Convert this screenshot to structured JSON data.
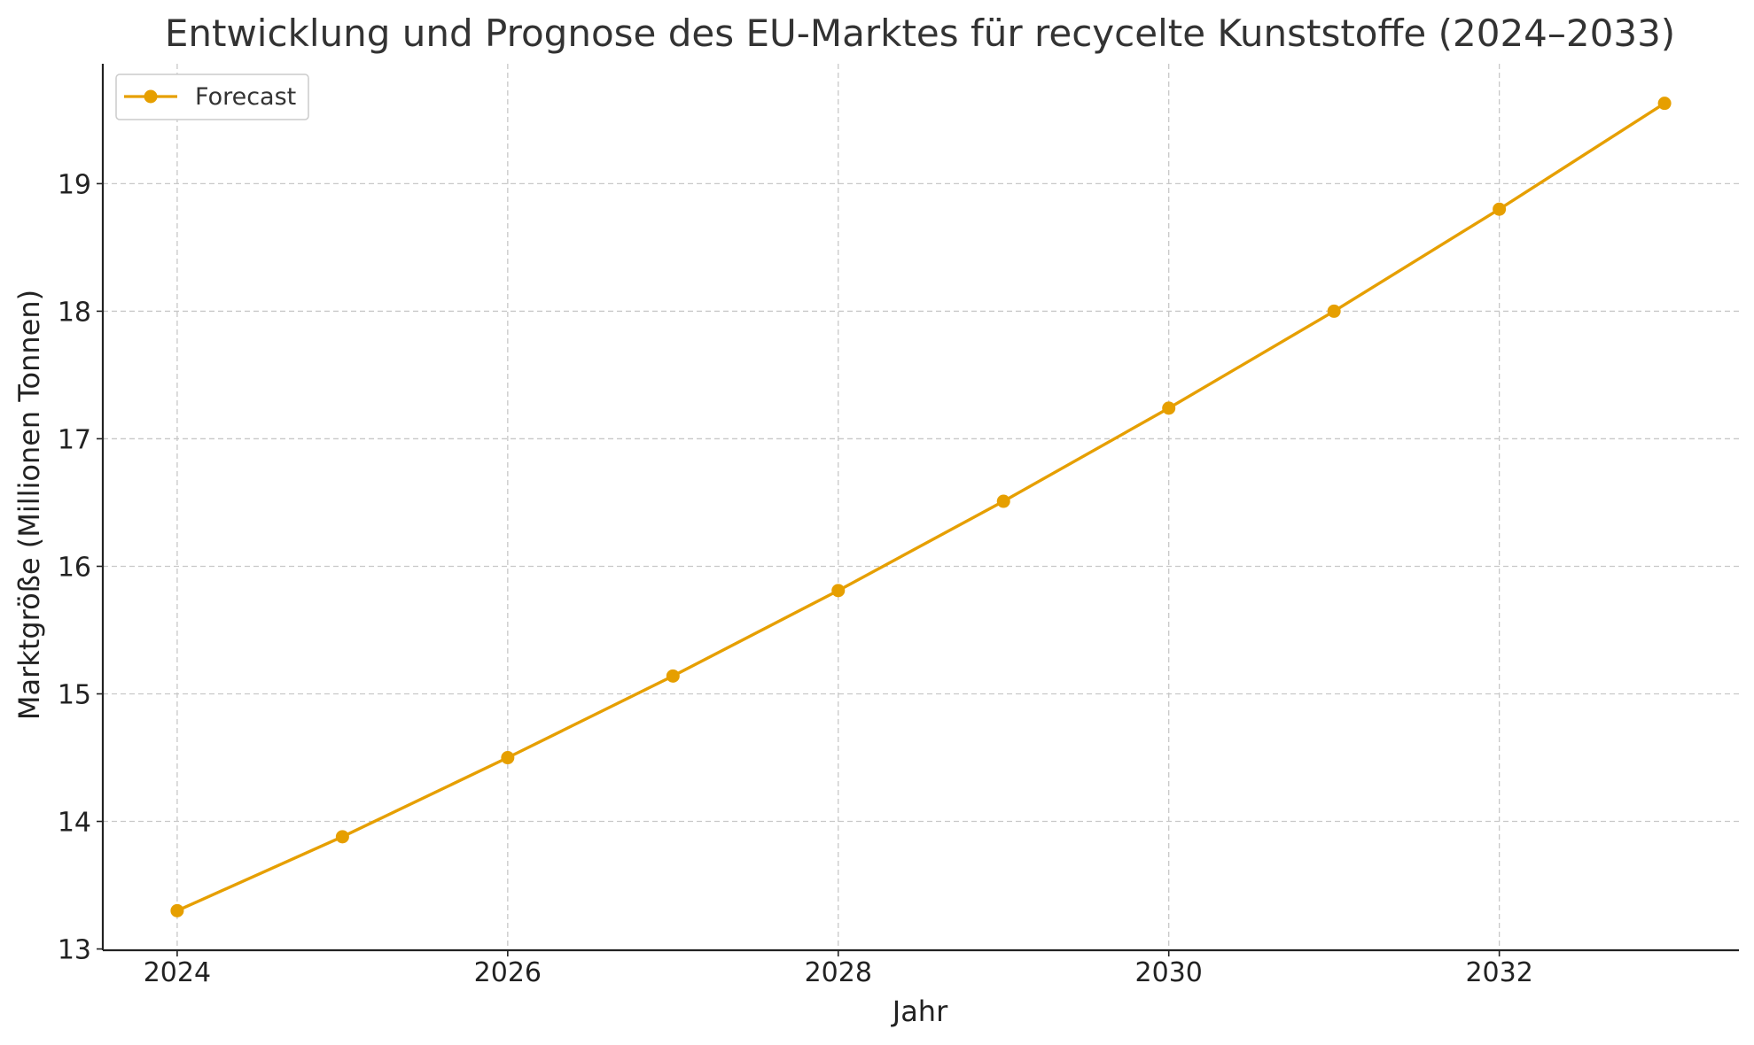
{
  "chart_data": {
    "type": "line",
    "title": "Entwicklung und Prognose des EU-Marktes für recycelte Kunststoffe (2024–2033)",
    "xlabel": "Jahr",
    "ylabel": "Marktgröße (Millionen Tonnen)",
    "x": [
      2024,
      2025,
      2026,
      2027,
      2028,
      2029,
      2030,
      2031,
      2032,
      2033
    ],
    "series": [
      {
        "name": "Forecast",
        "color": "#E69F00",
        "values": [
          13.3,
          13.88,
          14.5,
          15.14,
          15.81,
          16.51,
          17.24,
          18.0,
          18.8,
          19.63
        ]
      }
    ],
    "xlim": [
      2023.55,
      2033.45
    ],
    "ylim": [
      12.99,
      19.94
    ],
    "xticks": [
      2024,
      2026,
      2028,
      2030,
      2032
    ],
    "yticks": [
      13,
      14,
      15,
      16,
      17,
      18,
      19
    ],
    "xtick_labels": [
      "2024",
      "2026",
      "2028",
      "2030",
      "2032"
    ],
    "ytick_labels": [
      "13",
      "14",
      "15",
      "16",
      "17",
      "18",
      "19"
    ],
    "grid": true,
    "legend_position": "top-left"
  }
}
